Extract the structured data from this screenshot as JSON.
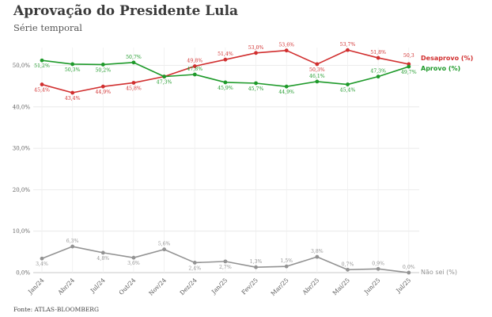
{
  "title": "Aprovação do Presidente Lula",
  "subtitle": "Série temporal",
  "source": "Fonte: ATLAS-BLOOMBERG",
  "chart_data": {
    "type": "line",
    "categories": [
      "Jan/24",
      "Abr/24",
      "Jul/24",
      "Out/24",
      "Nov/24",
      "Dez/24",
      "Jan/25",
      "Fev/25",
      "Mar/25",
      "Abr/25",
      "Mai/25",
      "Jun/25",
      "Jul/25"
    ],
    "ylim": [
      0,
      55
    ],
    "yticks": [
      0,
      10,
      20,
      30,
      40,
      50
    ],
    "ytick_labels": [
      "0,0%",
      "10,0%",
      "20,0%",
      "30,0%",
      "40,0%",
      "50,0%"
    ],
    "grid": true,
    "series": [
      {
        "name": "Desaprovo (%)",
        "color": "#d12f2f",
        "values": [
          45.4,
          43.4,
          44.9,
          45.8,
          47.3,
          49.8,
          51.4,
          53.0,
          53.6,
          50.3,
          53.7,
          51.8,
          50.3
        ],
        "labels": [
          "45,4%",
          "43,4%",
          "44,9%",
          "45,8%",
          "",
          "49,8%",
          "51,4%",
          "53,0%",
          "53,6%",
          "50,3%",
          "53,7%",
          "51,8%",
          "50,3"
        ]
      },
      {
        "name": "Aprovo (%)",
        "color": "#1e9a2a",
        "values": [
          51.2,
          50.3,
          50.2,
          50.7,
          47.3,
          47.8,
          45.9,
          45.7,
          44.9,
          46.1,
          45.4,
          47.3,
          49.7
        ],
        "labels": [
          "51,2%",
          "50,3%",
          "50,2%",
          "50,7%",
          "47,3%",
          "47,8%",
          "45,9%",
          "45,7%",
          "44,9%",
          "46,1%",
          "45,4%",
          "47,3%",
          "49,7%"
        ]
      },
      {
        "name": "Não sei (%)",
        "color": "#939393",
        "values": [
          3.4,
          6.3,
          4.8,
          3.6,
          5.6,
          2.4,
          2.7,
          1.3,
          1.5,
          3.8,
          0.7,
          0.9,
          0.0
        ],
        "labels": [
          "3,4%",
          "6,3%",
          "4,8%",
          "3,6%",
          "5,6%",
          "2,4%",
          "2,7%",
          "1,3%",
          "1,5%",
          "3,8%",
          "0,7%",
          "0,9%",
          "0,0%"
        ]
      }
    ]
  }
}
